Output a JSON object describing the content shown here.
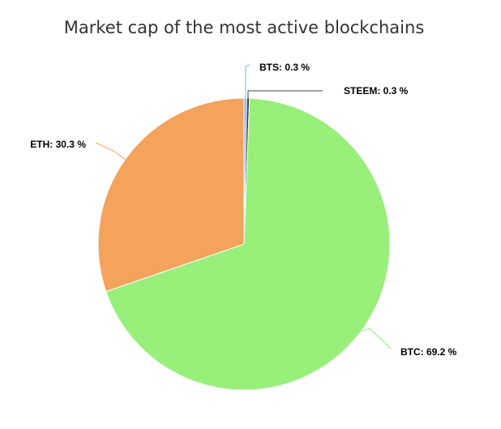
{
  "chart_data": {
    "type": "pie",
    "title": "Market cap of the most active blockchains",
    "slices": [
      {
        "label": "BTS",
        "value": 0.3,
        "display": "BTS: 0.3 %",
        "color": "#7cb5ec",
        "connector": "#7cb5ec",
        "side": "right"
      },
      {
        "label": "STEEM",
        "value": 0.3,
        "display": "STEEM: 0.3 %",
        "color": "#434348",
        "connector": "#434348",
        "side": "right"
      },
      {
        "label": "BTC",
        "value": 69.2,
        "display": "BTC: 69.2 %",
        "color": "#98ef7a",
        "connector": "#90ed7d",
        "side": "right"
      },
      {
        "label": "ETH",
        "value": 30.3,
        "display": "ETH: 30.3 %",
        "color": "#f3a35c",
        "connector": "#f7a35c",
        "side": "left"
      }
    ]
  }
}
